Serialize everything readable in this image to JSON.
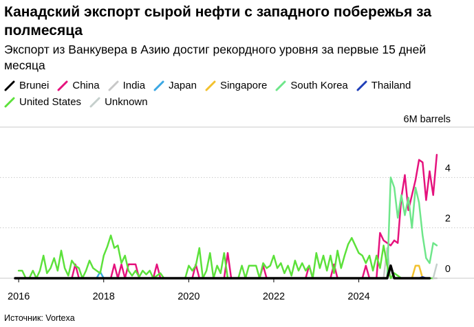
{
  "title": "Канадский экспорт сырой нефти с западного побережья за полмесяца",
  "subtitle": "Экспорт из Ванкувера в Азию достиг рекордного уровня за первые 15 дней месяца",
  "source": "Источник: Vortexa",
  "chart_data": {
    "type": "line",
    "unit_label": "6M barrels",
    "y_ticks": [
      "4",
      "2",
      "0"
    ],
    "x_ticks": [
      "2016",
      "2018",
      "2020",
      "2022",
      "2024"
    ],
    "ylim": [
      0,
      6
    ],
    "xlim": [
      "2015-12",
      "2025-12"
    ],
    "legend_position": "top",
    "grid": true,
    "series": [
      {
        "name": "Brunei",
        "color": "#000000",
        "width": 3.5,
        "points": [
          [
            "2015-12",
            0
          ],
          [
            "2024-09",
            0
          ],
          [
            "2024-10",
            0.5
          ],
          [
            "2024-11",
            0
          ],
          [
            "2025-09",
            0
          ]
        ]
      },
      {
        "name": "China",
        "color": "#e5127d",
        "width": 2.5,
        "points": [
          [
            "2015-12",
            0
          ],
          [
            "2017-04",
            0
          ],
          [
            "2017-05",
            0.55
          ],
          [
            "2017-06",
            0
          ],
          [
            "2018-03",
            0
          ],
          [
            "2018-04",
            0.55
          ],
          [
            "2018-05",
            0
          ],
          [
            "2018-06",
            0.55
          ],
          [
            "2018-07",
            0
          ],
          [
            "2018-08",
            0.55
          ],
          [
            "2018-09",
            0.55
          ],
          [
            "2018-10",
            0.55
          ],
          [
            "2018-11",
            0
          ],
          [
            "2019-03",
            0
          ],
          [
            "2019-04",
            0.55
          ],
          [
            "2019-05",
            0
          ],
          [
            "2020-02",
            0
          ],
          [
            "2020-03",
            0.55
          ],
          [
            "2020-04",
            0
          ],
          [
            "2020-11",
            0
          ],
          [
            "2020-12",
            1.0
          ],
          [
            "2021-01",
            0
          ],
          [
            "2021-09",
            0
          ],
          [
            "2021-10",
            0.5
          ],
          [
            "2021-11",
            0
          ],
          [
            "2022-10",
            0
          ],
          [
            "2022-11",
            0.5
          ],
          [
            "2022-12",
            0
          ],
          [
            "2023-05",
            0
          ],
          [
            "2023-06",
            0.55
          ],
          [
            "2023-07",
            0
          ],
          [
            "2024-02",
            0
          ],
          [
            "2024-03",
            0.5
          ],
          [
            "2024-04",
            0
          ],
          [
            "2024-06",
            0
          ],
          [
            "2024-07",
            1.8
          ],
          [
            "2024-08",
            1.5
          ],
          [
            "2024-09",
            1.4
          ],
          [
            "2024-10",
            1.3
          ],
          [
            "2024-11",
            1.5
          ],
          [
            "2024-12",
            1.4
          ],
          [
            "2025-01",
            3.2
          ],
          [
            "2025-02",
            4.1
          ],
          [
            "2025-03",
            2.7
          ],
          [
            "2025-04",
            3.3
          ],
          [
            "2025-05",
            3.9
          ],
          [
            "2025-06",
            4.7
          ],
          [
            "2025-07",
            4.6
          ],
          [
            "2025-08",
            3.1
          ],
          [
            "2025-09",
            4.25
          ],
          [
            "2025-10",
            3.3
          ],
          [
            "2025-11",
            4.9
          ]
        ]
      },
      {
        "name": "India",
        "color": "#c8c8c8",
        "width": 2.5,
        "points": [
          [
            "2024-08",
            0
          ],
          [
            "2024-09",
            1.2
          ],
          [
            "2024-10",
            0
          ],
          [
            "2025-11",
            0
          ]
        ]
      },
      {
        "name": "Japan",
        "color": "#3ba7e3",
        "width": 2.5,
        "points": [
          [
            "2017-11",
            0
          ],
          [
            "2017-12",
            0.25
          ],
          [
            "2018-01",
            0
          ]
        ]
      },
      {
        "name": "Singapore",
        "color": "#f2c12e",
        "width": 2.5,
        "points": [
          [
            "2025-04",
            0
          ],
          [
            "2025-05",
            0.5
          ],
          [
            "2025-06",
            0.5
          ],
          [
            "2025-07",
            0
          ]
        ]
      },
      {
        "name": "South Korea",
        "color": "#6ee68a",
        "width": 2.5,
        "points": [
          [
            "2024-09",
            0
          ],
          [
            "2024-10",
            4.0
          ],
          [
            "2024-11",
            3.6
          ],
          [
            "2024-12",
            2.4
          ],
          [
            "2025-01",
            3.3
          ],
          [
            "2025-02",
            2.5
          ],
          [
            "2025-03",
            3.2
          ],
          [
            "2025-04",
            2.0
          ],
          [
            "2025-05",
            3.6
          ],
          [
            "2025-06",
            3.0
          ],
          [
            "2025-07",
            1.7
          ],
          [
            "2025-08",
            0.8
          ],
          [
            "2025-09",
            0.6
          ],
          [
            "2025-10",
            1.4
          ],
          [
            "2025-11",
            1.3
          ]
        ]
      },
      {
        "name": "Thailand",
        "color": "#1f3fb8",
        "width": 2.5,
        "points": [
          [
            "2025-06",
            0
          ],
          [
            "2025-07",
            0.05
          ],
          [
            "2025-08",
            0
          ]
        ]
      },
      {
        "name": "United States",
        "color": "#5ce13b",
        "width": 2.5,
        "points": [
          [
            "2016-01",
            0.3
          ],
          [
            "2016-02",
            0.3
          ],
          [
            "2016-03",
            0
          ],
          [
            "2016-04",
            0
          ],
          [
            "2016-05",
            0.3
          ],
          [
            "2016-06",
            0
          ],
          [
            "2016-07",
            0.3
          ],
          [
            "2016-08",
            0.9
          ],
          [
            "2016-09",
            0.2
          ],
          [
            "2016-10",
            0.4
          ],
          [
            "2016-11",
            0.8
          ],
          [
            "2016-12",
            0.3
          ],
          [
            "2017-01",
            1.1
          ],
          [
            "2017-02",
            0.4
          ],
          [
            "2017-03",
            0.1
          ],
          [
            "2017-04",
            0.7
          ],
          [
            "2017-05",
            0.5
          ],
          [
            "2017-06",
            0.4
          ],
          [
            "2017-07",
            0
          ],
          [
            "2017-08",
            0.3
          ],
          [
            "2017-09",
            0.7
          ],
          [
            "2017-10",
            0.4
          ],
          [
            "2017-11",
            0.3
          ],
          [
            "2017-12",
            0.2
          ],
          [
            "2018-01",
            0.9
          ],
          [
            "2018-02",
            1.25
          ],
          [
            "2018-03",
            1.7
          ],
          [
            "2018-04",
            1.2
          ],
          [
            "2018-05",
            1.3
          ],
          [
            "2018-06",
            0.6
          ],
          [
            "2018-07",
            0.9
          ],
          [
            "2018-08",
            0.3
          ],
          [
            "2018-09",
            0.1
          ],
          [
            "2018-10",
            0.3
          ],
          [
            "2018-11",
            0.05
          ],
          [
            "2018-12",
            0.3
          ],
          [
            "2019-01",
            0.15
          ],
          [
            "2019-02",
            0.3
          ],
          [
            "2019-03",
            0
          ],
          [
            "2019-04",
            0.1
          ],
          [
            "2019-05",
            0.2
          ],
          [
            "2019-06",
            0
          ],
          [
            "2019-07",
            0
          ],
          [
            "2019-08",
            0
          ],
          [
            "2019-09",
            0
          ],
          [
            "2019-10",
            0
          ],
          [
            "2019-11",
            0
          ],
          [
            "2019-12",
            0
          ],
          [
            "2020-01",
            0.5
          ],
          [
            "2020-02",
            0.3
          ],
          [
            "2020-03",
            0.5
          ],
          [
            "2020-04",
            1.2
          ],
          [
            "2020-05",
            0
          ],
          [
            "2020-06",
            0.3
          ],
          [
            "2020-07",
            1.0
          ],
          [
            "2020-08",
            0
          ],
          [
            "2020-09",
            0.5
          ],
          [
            "2020-10",
            0.2
          ],
          [
            "2020-11",
            1.0
          ],
          [
            "2020-12",
            0
          ],
          [
            "2021-01",
            0
          ],
          [
            "2021-02",
            0
          ],
          [
            "2021-03",
            0
          ],
          [
            "2021-04",
            0.5
          ],
          [
            "2021-05",
            0
          ],
          [
            "2021-06",
            0.5
          ],
          [
            "2021-07",
            0.5
          ],
          [
            "2021-08",
            0.5
          ],
          [
            "2021-09",
            0
          ],
          [
            "2021-10",
            0.6
          ],
          [
            "2021-11",
            0.4
          ],
          [
            "2021-12",
            0.5
          ],
          [
            "2022-01",
            0.9
          ],
          [
            "2022-02",
            0.4
          ],
          [
            "2022-03",
            0.6
          ],
          [
            "2022-04",
            0.2
          ],
          [
            "2022-05",
            0.5
          ],
          [
            "2022-06",
            0.1
          ],
          [
            "2022-07",
            0.7
          ],
          [
            "2022-08",
            0.3
          ],
          [
            "2022-09",
            0.6
          ],
          [
            "2022-10",
            0.3
          ],
          [
            "2022-11",
            0.5
          ],
          [
            "2022-12",
            0
          ],
          [
            "2023-01",
            1.0
          ],
          [
            "2023-02",
            0.4
          ],
          [
            "2023-03",
            0.9
          ],
          [
            "2023-04",
            0.3
          ],
          [
            "2023-05",
            0.9
          ],
          [
            "2023-06",
            0.2
          ],
          [
            "2023-07",
            1.1
          ],
          [
            "2023-08",
            0.4
          ],
          [
            "2023-09",
            0.9
          ],
          [
            "2023-10",
            1.35
          ],
          [
            "2023-11",
            1.6
          ],
          [
            "2023-12",
            1.3
          ],
          [
            "2024-01",
            1.0
          ],
          [
            "2024-02",
            0.9
          ],
          [
            "2024-03",
            0.6
          ],
          [
            "2024-04",
            0.9
          ],
          [
            "2024-05",
            0.3
          ],
          [
            "2024-06",
            0.9
          ],
          [
            "2024-07",
            0.4
          ],
          [
            "2024-08",
            1.3
          ],
          [
            "2024-09",
            0.5
          ],
          [
            "2024-10",
            0
          ],
          [
            "2024-11",
            0.2
          ],
          [
            "2024-12",
            0.1
          ],
          [
            "2025-01",
            0
          ],
          [
            "2025-02",
            0
          ],
          [
            "2025-03",
            0
          ],
          [
            "2025-04",
            0
          ],
          [
            "2025-05",
            0
          ],
          [
            "2025-06",
            0
          ],
          [
            "2025-07",
            0
          ],
          [
            "2025-08",
            0
          ],
          [
            "2025-09",
            0
          ],
          [
            "2025-10",
            0
          ]
        ]
      },
      {
        "name": "Unknown",
        "color": "#c5cfcc",
        "width": 2.5,
        "points": [
          [
            "2025-10",
            0
          ],
          [
            "2025-11",
            0.55
          ]
        ]
      }
    ]
  }
}
